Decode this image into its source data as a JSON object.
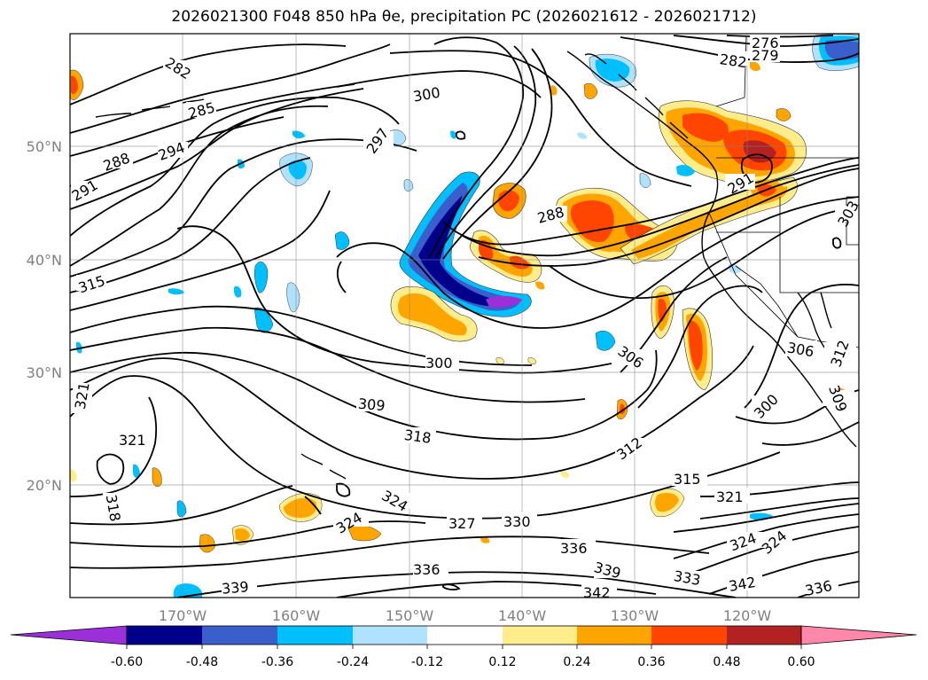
{
  "title": "2026021300 F048 850 hPa θe, precipitation PC (2026021612 - 2026021712)",
  "lon_ticks": [
    "170°W",
    "160°W",
    "150°W",
    "140°W",
    "130°W",
    "120°W"
  ],
  "lat_ticks": [
    "50°N",
    "40°N",
    "30°N",
    "20°N"
  ],
  "contour_labels": [
    "282",
    "285",
    "288",
    "291",
    "294",
    "297",
    "300",
    "276",
    "279",
    "282",
    "288",
    "291",
    "303",
    "315",
    "321",
    "321",
    "318",
    "309",
    "318",
    "300",
    "306",
    "306",
    "312",
    "300",
    "309",
    "312",
    "315",
    "321",
    "324",
    "324",
    "327",
    "330",
    "336",
    "336",
    "339",
    "339",
    "342",
    "342",
    "333",
    "324",
    "324",
    "336"
  ],
  "colorbar": {
    "ticks": [
      "-0.60",
      "-0.48",
      "-0.36",
      "-0.24",
      "-0.12",
      "0.12",
      "0.24",
      "0.36",
      "0.48",
      "0.60"
    ],
    "colors": [
      "#9b30d9",
      "#00008b",
      "#3a5fcd",
      "#00bfff",
      "#b0e2ff",
      "#ffffff",
      "#ffec8b",
      "#ffa500",
      "#ff4500",
      "#b22222",
      "#ff88aa"
    ]
  },
  "field_colors": {
    "neg_strong": "#9b30d9",
    "neg_dark": "#00008b",
    "neg_mid": "#3a5fcd",
    "neg_light": "#00bfff",
    "neg_pale": "#b0e2ff",
    "pos_pale": "#ffec8b",
    "pos_mid": "#ffa500",
    "pos_strong": "#ff4500",
    "pos_dark": "#b22222",
    "pos_extreme": "#ff88aa"
  }
}
